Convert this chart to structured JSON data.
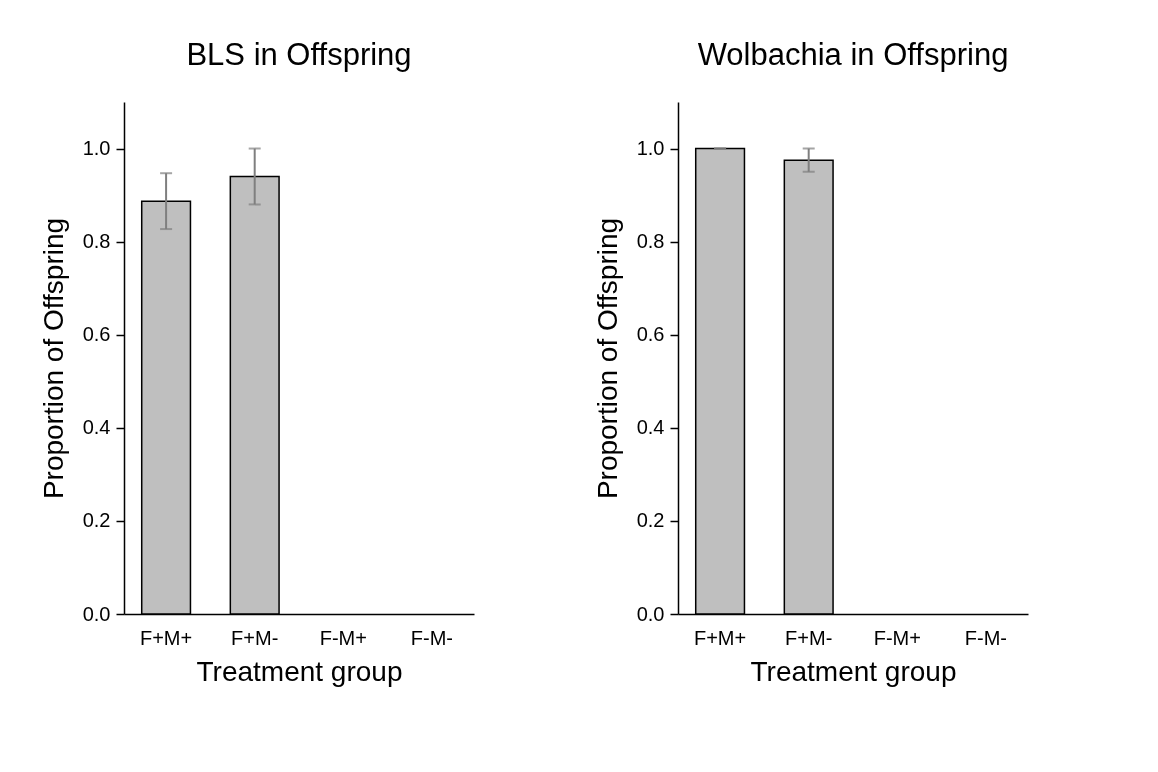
{
  "chart_data": [
    {
      "type": "bar",
      "title": "BLS in Offspring",
      "xlabel": "Treatment group",
      "ylabel": "Proportion of Offspring",
      "categories": [
        "F+M+",
        "F+M-",
        "F-M+",
        "F-M-"
      ],
      "values": [
        0.887,
        0.94,
        0,
        0
      ],
      "errors": [
        0.06,
        0.06,
        null,
        null
      ],
      "color": "#bfbfbf",
      "ylim": [
        0,
        1.1
      ],
      "yticks": [
        {
          "value": 0,
          "label": "0.0"
        },
        {
          "value": 0.2,
          "label": "0.2"
        },
        {
          "value": 0.4,
          "label": "0.4"
        },
        {
          "value": 0.6,
          "label": "0.6"
        },
        {
          "value": 0.8,
          "label": "0.8"
        },
        {
          "value": 1,
          "label": "1.0"
        }
      ],
      "grid": false
    },
    {
      "type": "bar",
      "title": "Wolbachia in Offspring",
      "xlabel": "Treatment group",
      "ylabel": "Proportion of Offspring",
      "categories": [
        "F+M+",
        "F+M-",
        "F-M+",
        "F-M-"
      ],
      "values": [
        1,
        0.975,
        0,
        0
      ],
      "errors": [
        0,
        0.025,
        null,
        null
      ],
      "color": "#bfbfbf",
      "ylim": [
        0,
        1.1
      ],
      "yticks": [
        {
          "value": 0,
          "label": "0.0"
        },
        {
          "value": 0.2,
          "label": "0.2"
        },
        {
          "value": 0.4,
          "label": "0.4"
        },
        {
          "value": 0.6,
          "label": "0.6"
        },
        {
          "value": 0.8,
          "label": "0.8"
        },
        {
          "value": 1,
          "label": "1.0"
        }
      ],
      "grid": false
    }
  ]
}
